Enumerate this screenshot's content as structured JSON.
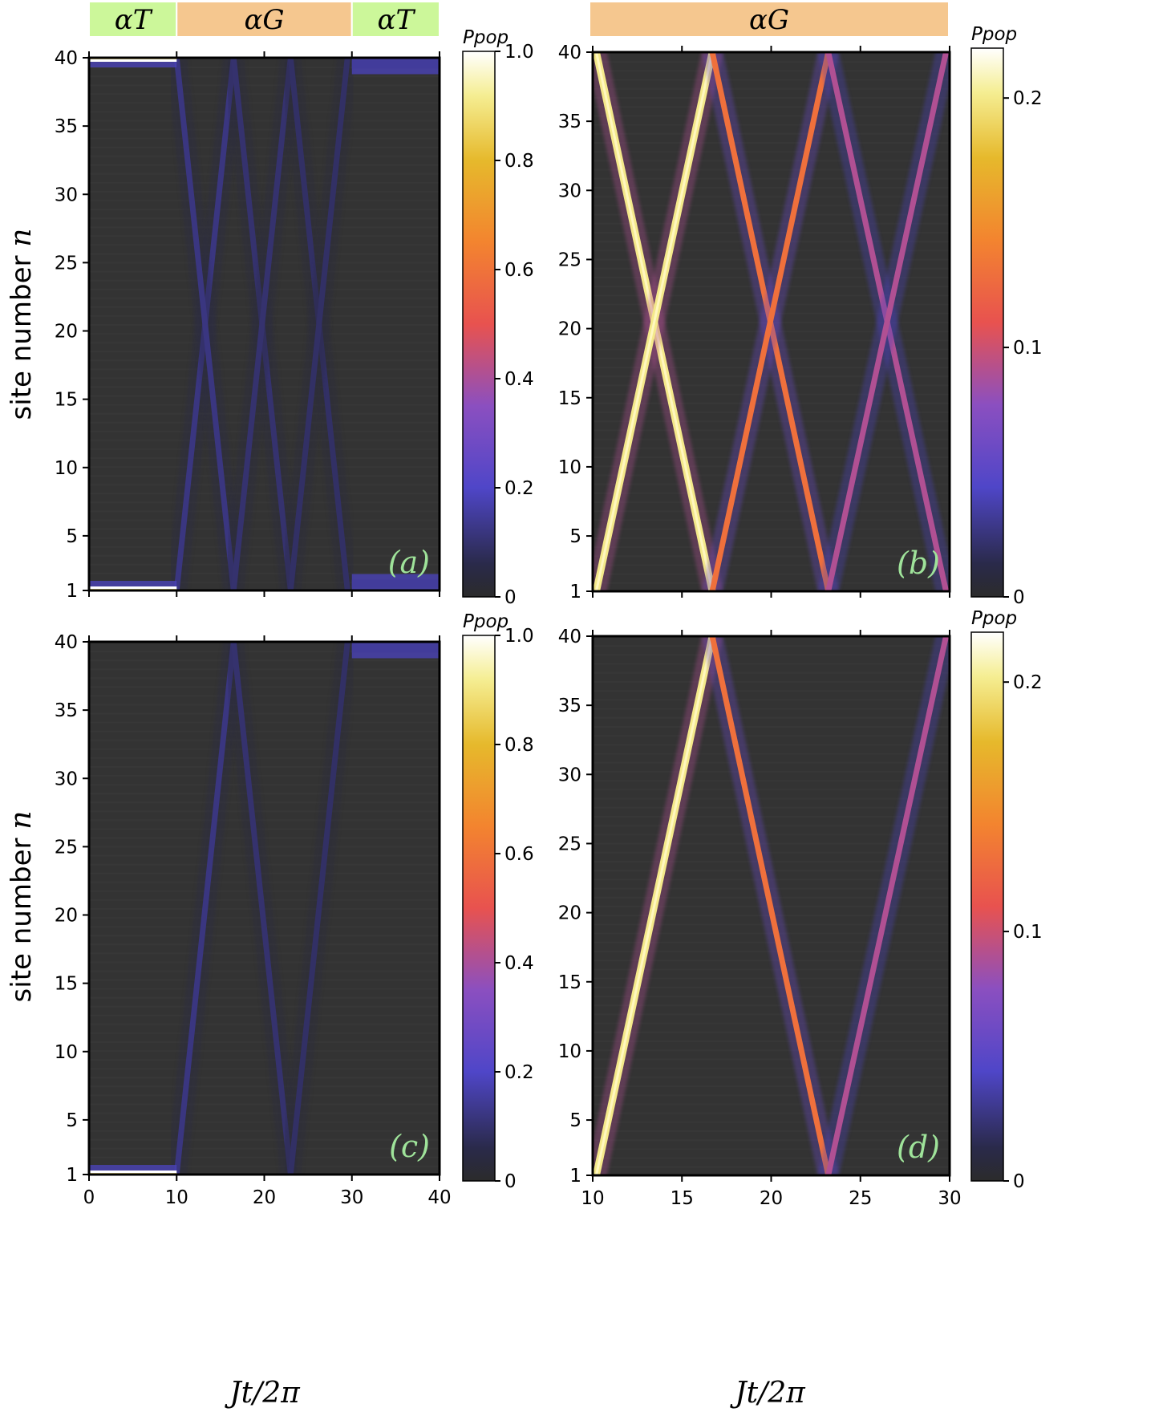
{
  "axes": {
    "ylabel": "site number",
    "ylabel_var": "n",
    "xlabel": "Jt/2π"
  },
  "chart_data": [
    {
      "type": "heatmap",
      "panel": "(a)",
      "xlim": [
        0,
        40
      ],
      "ylim": [
        1,
        40
      ],
      "xticks": [
        "0",
        "10",
        "20",
        "30",
        "40"
      ],
      "yticks": [
        "1",
        "5",
        "10",
        "15",
        "20",
        "25",
        "30",
        "35",
        "40"
      ],
      "regions": [
        {
          "label": "αT",
          "from": 0,
          "to": 10,
          "color": "#ccf79a"
        },
        {
          "label": "αG",
          "from": 10,
          "to": 30,
          "color": "#f5c78f"
        },
        {
          "label": "αT",
          "from": 30,
          "to": 40,
          "color": "#ccf79a"
        }
      ],
      "colorbar": {
        "label": "Ppop",
        "min": 0,
        "max": 1.0,
        "ticks": [
          "0",
          "0.2",
          "0.4",
          "0.6",
          "0.8",
          "1.0"
        ]
      },
      "wavefronts": [
        {
          "from": [
            10,
            1
          ],
          "to": [
            16.5,
            40
          ],
          "level": 0.12
        },
        {
          "from": [
            10,
            40
          ],
          "to": [
            16.5,
            1
          ],
          "level": 0.12
        },
        {
          "from": [
            16.5,
            40
          ],
          "to": [
            23,
            1
          ],
          "level": 0.1
        },
        {
          "from": [
            16.5,
            1
          ],
          "to": [
            23,
            40
          ],
          "level": 0.1
        },
        {
          "from": [
            23,
            40
          ],
          "to": [
            29.5,
            1
          ],
          "level": 0.09
        },
        {
          "from": [
            23,
            1
          ],
          "to": [
            29.5,
            40
          ],
          "level": 0.09
        }
      ],
      "edge_modes": [
        {
          "site": 1,
          "from": 0,
          "to": 10,
          "level": 1.0
        },
        {
          "site": 40,
          "from": 0,
          "to": 10,
          "level": 1.0
        },
        {
          "site": 39.5,
          "from": 30,
          "to": 40,
          "level": 0.15
        },
        {
          "site": 1.5,
          "from": 30,
          "to": 40,
          "level": 0.15
        }
      ]
    },
    {
      "type": "heatmap",
      "panel": "(b)",
      "xlim": [
        10,
        30
      ],
      "ylim": [
        1,
        40
      ],
      "xticks": [
        "10",
        "15",
        "20",
        "25",
        "30"
      ],
      "yticks": [
        "1",
        "5",
        "10",
        "15",
        "20",
        "25",
        "30",
        "35",
        "40"
      ],
      "regions": [
        {
          "label": "αG",
          "from": 10,
          "to": 30,
          "color": "#f5c78f"
        }
      ],
      "colorbar": {
        "label": "Ppop",
        "min": 0,
        "max": 0.22,
        "ticks": [
          "0",
          "0.1",
          "0.2"
        ]
      },
      "wavefronts": [
        {
          "from": [
            10.2,
            40
          ],
          "to": [
            16.7,
            1
          ],
          "level": 0.2
        },
        {
          "from": [
            10.2,
            1
          ],
          "to": [
            16.7,
            40
          ],
          "level": 0.2
        },
        {
          "from": [
            16.7,
            40
          ],
          "to": [
            23.2,
            1
          ],
          "level": 0.13
        },
        {
          "from": [
            16.7,
            1
          ],
          "to": [
            23.2,
            40
          ],
          "level": 0.13
        },
        {
          "from": [
            23.2,
            40
          ],
          "to": [
            29.8,
            1
          ],
          "level": 0.09
        },
        {
          "from": [
            23.2,
            1
          ],
          "to": [
            29.8,
            40
          ],
          "level": 0.09
        }
      ]
    },
    {
      "type": "heatmap",
      "panel": "(c)",
      "xlim": [
        0,
        40
      ],
      "ylim": [
        1,
        40
      ],
      "xticks": [
        "0",
        "10",
        "20",
        "30",
        "40"
      ],
      "yticks": [
        "1",
        "5",
        "10",
        "15",
        "20",
        "25",
        "30",
        "35",
        "40"
      ],
      "colorbar": {
        "label": "Ppop",
        "min": 0,
        "max": 1.0,
        "ticks": [
          "0",
          "0.2",
          "0.4",
          "0.6",
          "0.8",
          "1.0"
        ]
      },
      "wavefronts": [
        {
          "from": [
            10,
            1
          ],
          "to": [
            16.5,
            40
          ],
          "level": 0.12
        },
        {
          "from": [
            16.5,
            40
          ],
          "to": [
            23,
            1
          ],
          "level": 0.1
        },
        {
          "from": [
            23,
            1
          ],
          "to": [
            29.5,
            40
          ],
          "level": 0.09
        }
      ],
      "edge_modes": [
        {
          "site": 1,
          "from": 0,
          "to": 10,
          "level": 1.0
        },
        {
          "site": 39.5,
          "from": 30,
          "to": 40,
          "level": 0.15
        }
      ]
    },
    {
      "type": "heatmap",
      "panel": "(d)",
      "xlim": [
        10,
        30
      ],
      "ylim": [
        1,
        40
      ],
      "xticks": [
        "10",
        "15",
        "20",
        "25",
        "30"
      ],
      "yticks": [
        "1",
        "5",
        "10",
        "15",
        "20",
        "25",
        "30",
        "35",
        "40"
      ],
      "colorbar": {
        "label": "Ppop",
        "min": 0,
        "max": 0.22,
        "ticks": [
          "0",
          "0.1",
          "0.2"
        ]
      },
      "wavefronts": [
        {
          "from": [
            10.2,
            1
          ],
          "to": [
            16.7,
            40
          ],
          "level": 0.2
        },
        {
          "from": [
            16.7,
            40
          ],
          "to": [
            23.2,
            1
          ],
          "level": 0.13
        },
        {
          "from": [
            23.2,
            1
          ],
          "to": [
            29.8,
            40
          ],
          "level": 0.09
        }
      ]
    }
  ]
}
